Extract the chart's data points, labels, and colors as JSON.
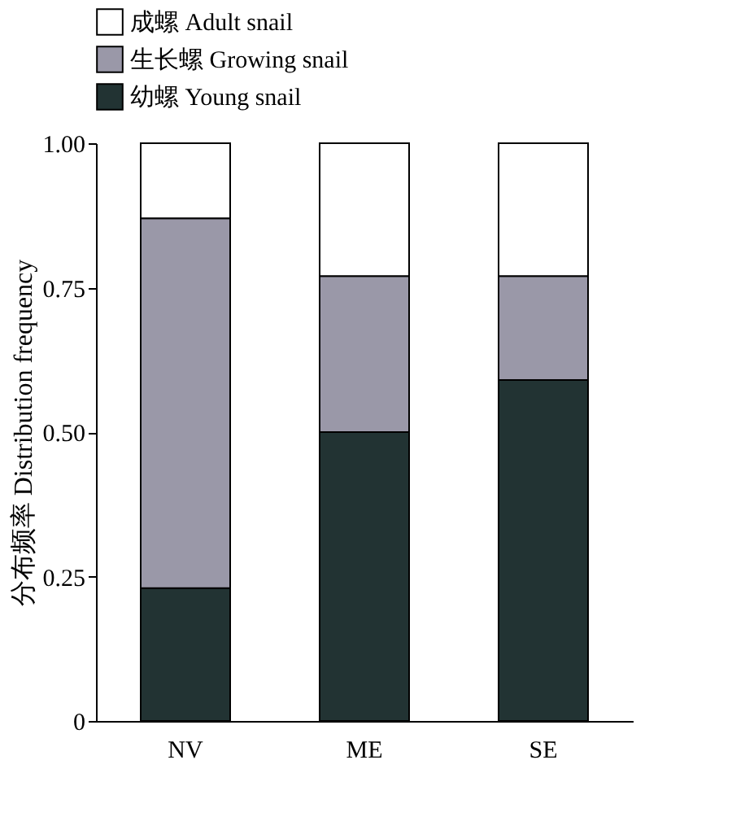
{
  "chart_data": {
    "type": "bar",
    "stacked": true,
    "categories": [
      "NV",
      "ME",
      "SE"
    ],
    "ylabel": "分布频率 Distribution frequency",
    "series": [
      {
        "name": "幼螺 Young snail",
        "color": "#223333",
        "values": [
          0.23,
          0.5,
          0.59
        ]
      },
      {
        "name": "生长螺 Growing snail",
        "color": "#9a98a8",
        "values": [
          0.64,
          0.27,
          0.18
        ]
      },
      {
        "name": "成螺 Adult snail",
        "color": "#ffffff",
        "values": [
          0.13,
          0.23,
          0.23
        ]
      }
    ],
    "ylim": [
      0,
      1
    ],
    "yticks": [
      0,
      {
        "value": 0.25,
        "label": "0.25"
      },
      {
        "value": 0.5,
        "label": "0.50"
      },
      {
        "value": 0.75,
        "label": "0.75"
      },
      {
        "value": 1,
        "label": "1.00"
      }
    ],
    "grid": false,
    "legend": "top"
  }
}
